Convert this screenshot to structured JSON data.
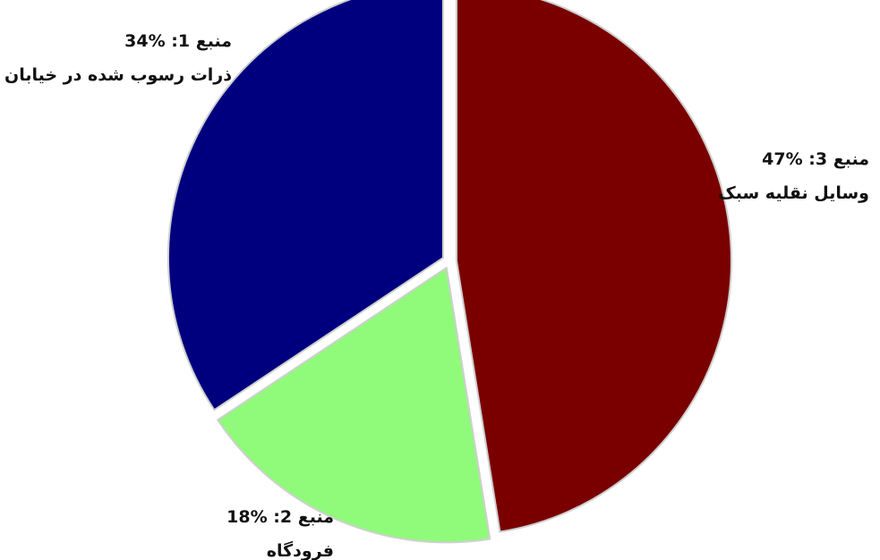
{
  "chart_data": {
    "type": "pie",
    "slices": [
      {
        "source": "منبع 1",
        "label": "ذرات رسوب شده در خیابان",
        "value": 34,
        "value_text": "%34",
        "color": "#00007f"
      },
      {
        "source": "منبع 2",
        "label": "فرودگاه",
        "value": 18,
        "value_text": "%18",
        "color": "#90fa7a"
      },
      {
        "source": "منبع 3",
        "label": "وسایل نقلیه سبک",
        "value": 47,
        "value_text": "%47",
        "color": "#7a0000"
      }
    ]
  }
}
